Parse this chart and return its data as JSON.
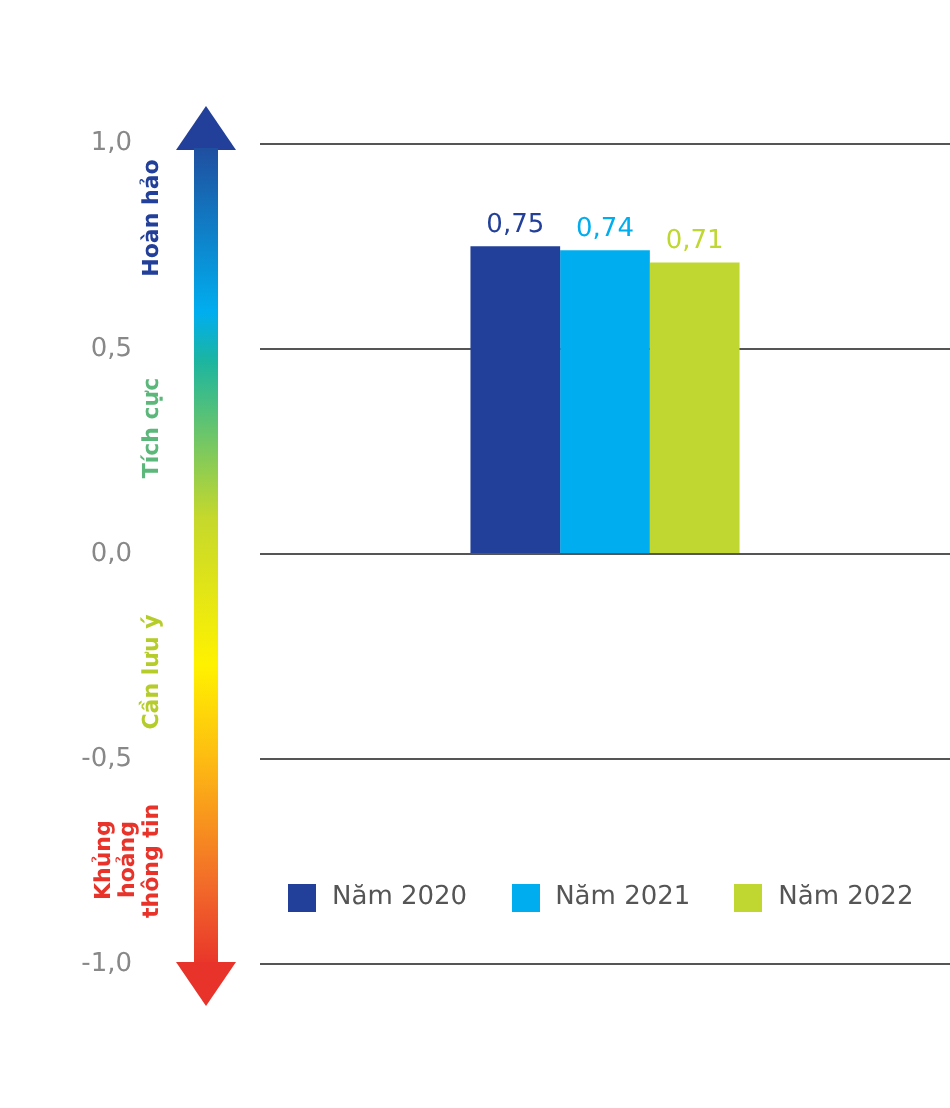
{
  "chart_data": {
    "type": "bar",
    "categories": [
      null
    ],
    "series": [
      {
        "name": "Năm 2020",
        "color": "#22409a",
        "values": [
          0.75
        ]
      },
      {
        "name": "Năm 2021",
        "color": "#00aeef",
        "values": [
          0.74
        ]
      },
      {
        "name": "Năm 2022",
        "color": "#c0d731",
        "values": [
          0.71
        ]
      }
    ],
    "ylim": [
      -1,
      1
    ],
    "yticks": [
      {
        "value": -1,
        "label": "-1,0"
      },
      {
        "value": -0.5,
        "label": "-0,5"
      },
      {
        "value": 0,
        "label": "0,0"
      },
      {
        "value": 0.5,
        "label": "0,5"
      },
      {
        "value": 1,
        "label": "1,0"
      }
    ],
    "value_labels": [
      "0,75",
      "0,74",
      "0,71"
    ],
    "grid": "y",
    "legend": "bottom",
    "annotations": [
      "Hoàn hảo",
      "Tích cực",
      "Cần lưu ý",
      "Khủng hoảng thông tin"
    ]
  }
}
